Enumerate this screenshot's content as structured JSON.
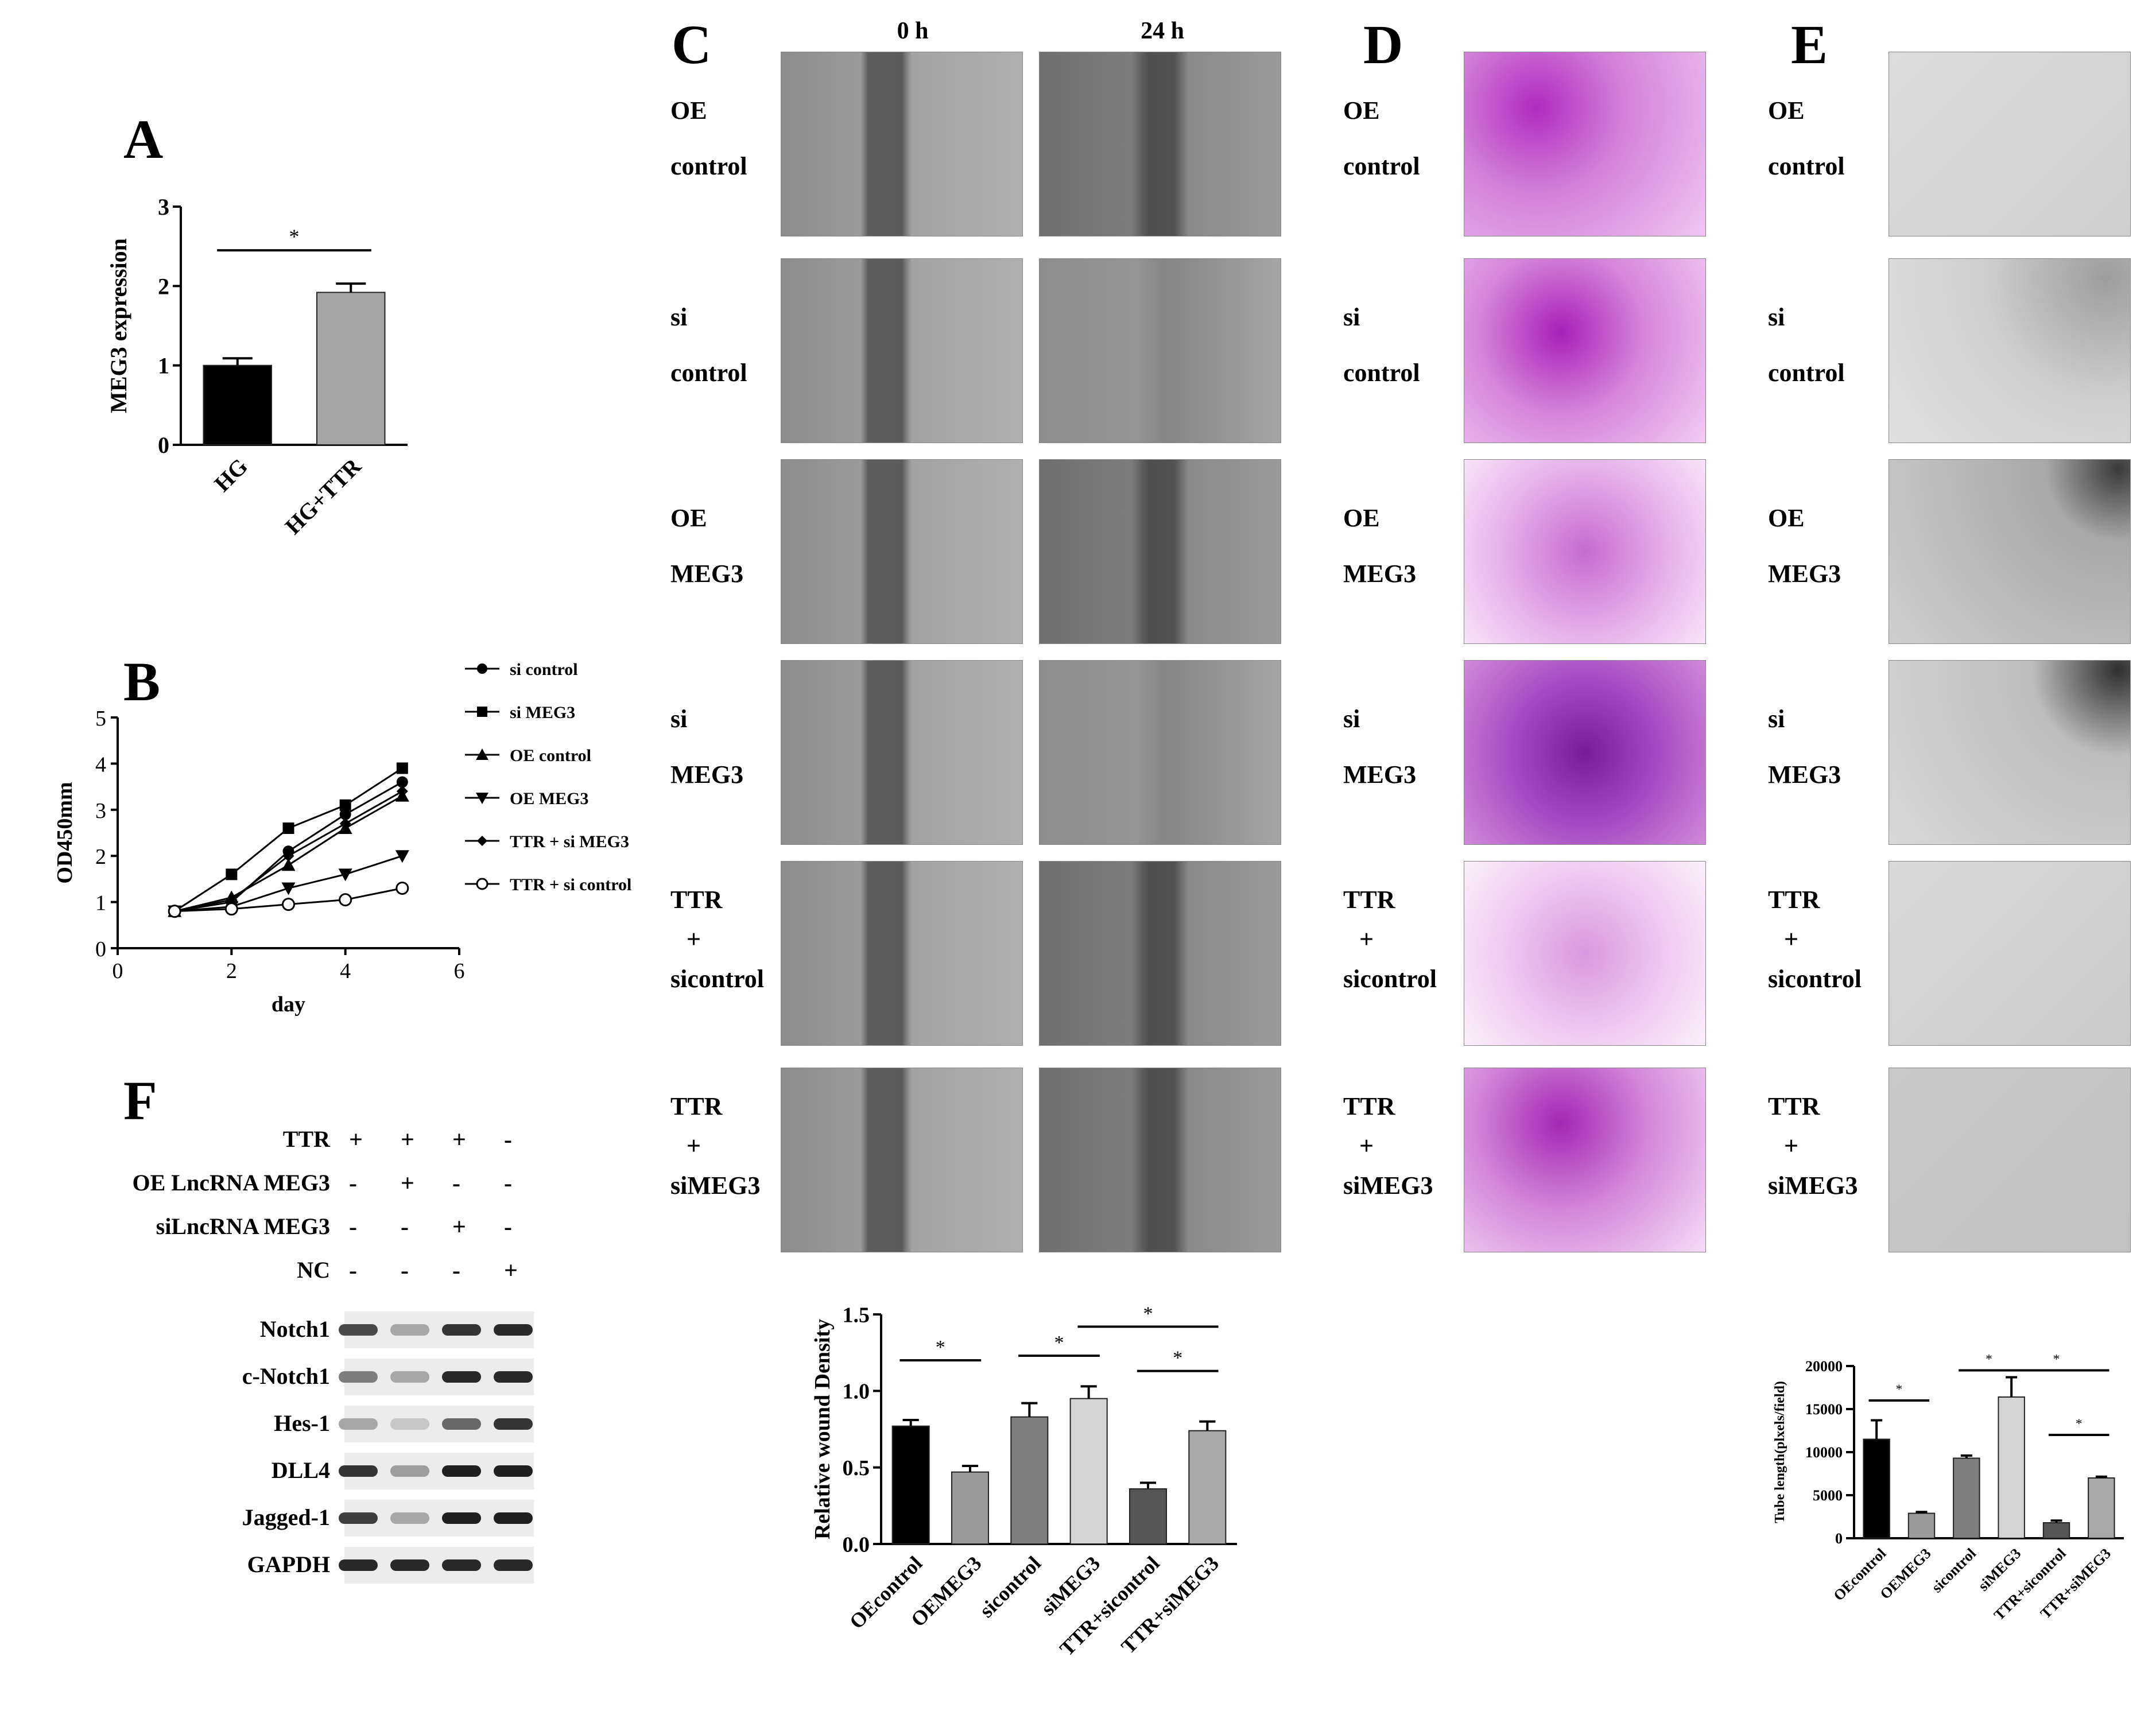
{
  "panels": {
    "A": {
      "letter": "A",
      "chart_data": {
        "type": "bar",
        "categories": [
          "HG",
          "HG+TTR"
        ],
        "values": [
          1.0,
          1.92
        ],
        "errors": [
          0.09,
          0.11
        ],
        "ylabel": "MEG3 expression",
        "xlabel": "",
        "ylim": [
          0,
          3
        ],
        "yticks": [
          "0",
          "1",
          "2",
          "3"
        ],
        "bar_colors": [
          "#000000",
          "#a6a6a6"
        ],
        "significance": [
          {
            "between": [
              "HG",
              "HG+TTR"
            ],
            "mark": "*"
          }
        ]
      }
    },
    "B": {
      "letter": "B",
      "chart_data": {
        "type": "line",
        "x": [
          1,
          2,
          3,
          4,
          5
        ],
        "xlabel": "day",
        "ylabel": "OD450mm",
        "xlim": [
          0,
          6
        ],
        "ylim": [
          0,
          5
        ],
        "xticks": [
          "0",
          "2",
          "4",
          "6"
        ],
        "yticks": [
          "0",
          "1",
          "2",
          "3",
          "4",
          "5"
        ],
        "legend_position": "right",
        "series": [
          {
            "name": "si control",
            "marker": "circle-filled",
            "values": [
              0.8,
              1.0,
              2.1,
              2.9,
              3.6
            ]
          },
          {
            "name": "si MEG3",
            "marker": "square",
            "values": [
              0.8,
              1.6,
              2.6,
              3.1,
              3.9
            ]
          },
          {
            "name": "OE control",
            "marker": "triangle-up",
            "values": [
              0.8,
              1.1,
              1.8,
              2.6,
              3.3
            ]
          },
          {
            "name": "OE MEG3",
            "marker": "triangle-down",
            "values": [
              0.8,
              0.9,
              1.3,
              1.6,
              2.0
            ]
          },
          {
            "name": "TTR + si MEG3",
            "marker": "diamond",
            "values": [
              0.8,
              1.05,
              2.0,
              2.7,
              3.4
            ]
          },
          {
            "name": "TTR + si control",
            "marker": "circle-open",
            "values": [
              0.8,
              0.85,
              0.95,
              1.05,
              1.3
            ]
          }
        ]
      }
    },
    "C": {
      "letter": "C",
      "col_headers": [
        "0 h",
        "24 h"
      ],
      "rows": [
        {
          "line1": "OE",
          "line2": "control"
        },
        {
          "line1": "si",
          "line2": "control"
        },
        {
          "line1": "OE",
          "line2": "MEG3"
        },
        {
          "line1": "si",
          "line2": "MEG3"
        },
        {
          "line1": "TTR",
          "line2": "+",
          "line3": "sicontrol"
        },
        {
          "line1": "TTR",
          "line2": "+",
          "line3": "siMEG3"
        }
      ],
      "chart_data": {
        "type": "bar",
        "categories": [
          "OEcontrol",
          "OEMEG3",
          "sicontrol",
          "siMEG3",
          "TTR+sicontrol",
          "TTR+siMEG3"
        ],
        "values": [
          0.77,
          0.47,
          0.83,
          0.95,
          0.36,
          0.74
        ],
        "errors": [
          0.04,
          0.04,
          0.09,
          0.08,
          0.04,
          0.06
        ],
        "ylabel": "Relative wound Density",
        "xlabel": "",
        "ylim": [
          0,
          1.5
        ],
        "yticks": [
          "0.0",
          "0.5",
          "1.0",
          "1.5"
        ],
        "bar_colors": [
          "#000000",
          "#9a9a9a",
          "#7f7f7f",
          "#d4d4d4",
          "#555555",
          "#a8a8a8"
        ],
        "significance": [
          {
            "between": [
              "OEcontrol",
              "OEMEG3"
            ],
            "mark": "*"
          },
          {
            "between": [
              "sicontrol",
              "siMEG3"
            ],
            "mark": "*"
          },
          {
            "between": [
              "siMEG3",
              "TTR+siMEG3"
            ],
            "mark": "*"
          },
          {
            "between": [
              "TTR+sicontrol",
              "TTR+siMEG3"
            ],
            "mark": "*"
          }
        ]
      }
    },
    "D": {
      "letter": "D",
      "rows": [
        {
          "line1": "OE",
          "line2": "control"
        },
        {
          "line1": "si",
          "line2": "control"
        },
        {
          "line1": "OE",
          "line2": "MEG3"
        },
        {
          "line1": "si",
          "line2": "MEG3"
        },
        {
          "line1": "TTR",
          "line2": "+",
          "line3": "sicontrol"
        },
        {
          "line1": "TTR",
          "line2": "+",
          "line3": "siMEG3"
        }
      ]
    },
    "E": {
      "letter": "E",
      "rows": [
        {
          "line1": "OE",
          "line2": "control"
        },
        {
          "line1": "si",
          "line2": "control"
        },
        {
          "line1": "OE",
          "line2": "MEG3"
        },
        {
          "line1": "si",
          "line2": "MEG3"
        },
        {
          "line1": "TTR",
          "line2": "+",
          "line3": "sicontrol"
        },
        {
          "line1": "TTR",
          "line2": "+",
          "line3": "siMEG3"
        }
      ],
      "chart_data": {
        "type": "bar",
        "categories": [
          "OEcontrol",
          "OEMEG3",
          "sicontrol",
          "siMEG3",
          "TTR+sicontrol",
          "TTR+siMEG3"
        ],
        "values": [
          11500,
          2900,
          9300,
          16400,
          1800,
          7000
        ],
        "errors": [
          2200,
          150,
          300,
          2300,
          250,
          150
        ],
        "ylabel": "Tube length(plxels/field)",
        "xlabel": "",
        "ylim": [
          0,
          20000
        ],
        "yticks": [
          "0",
          "5000",
          "10000",
          "15000",
          "20000"
        ],
        "bar_colors": [
          "#000000",
          "#9a9a9a",
          "#7f7f7f",
          "#d4d4d4",
          "#555555",
          "#a8a8a8"
        ],
        "significance": [
          {
            "between": [
              "OEcontrol",
              "OEMEG3"
            ],
            "mark": "*"
          },
          {
            "between": [
              "sicontrol",
              "siMEG3"
            ],
            "mark": "*"
          },
          {
            "between": [
              "siMEG3",
              "TTR+siMEG3"
            ],
            "mark": "*"
          },
          {
            "between": [
              "TTR+sicontrol",
              "TTR+siMEG3"
            ],
            "mark": "*"
          }
        ]
      }
    },
    "F": {
      "letter": "F",
      "conditions": [
        {
          "label": "TTR",
          "marks": [
            "+",
            "+",
            "+",
            "-"
          ]
        },
        {
          "label": "OE LncRNA MEG3",
          "marks": [
            "-",
            "+",
            "-",
            "-"
          ]
        },
        {
          "label": "siLncRNA MEG3",
          "marks": [
            "-",
            "-",
            "+",
            "-"
          ]
        },
        {
          "label": "NC",
          "marks": [
            "-",
            "-",
            "-",
            "+"
          ]
        }
      ],
      "blots": [
        {
          "label": "Notch1",
          "intensity": [
            0.75,
            0.3,
            0.85,
            0.9
          ]
        },
        {
          "label": "c-Notch1",
          "intensity": [
            0.5,
            0.3,
            0.9,
            0.9
          ]
        },
        {
          "label": "Hes-1",
          "intensity": [
            0.3,
            0.15,
            0.6,
            0.85
          ]
        },
        {
          "label": "DLL4",
          "intensity": [
            0.85,
            0.35,
            0.95,
            0.95
          ]
        },
        {
          "label": "Jagged-1",
          "intensity": [
            0.8,
            0.3,
            0.95,
            0.95
          ]
        },
        {
          "label": "GAPDH",
          "intensity": [
            0.9,
            0.9,
            0.9,
            0.9
          ]
        }
      ]
    }
  }
}
